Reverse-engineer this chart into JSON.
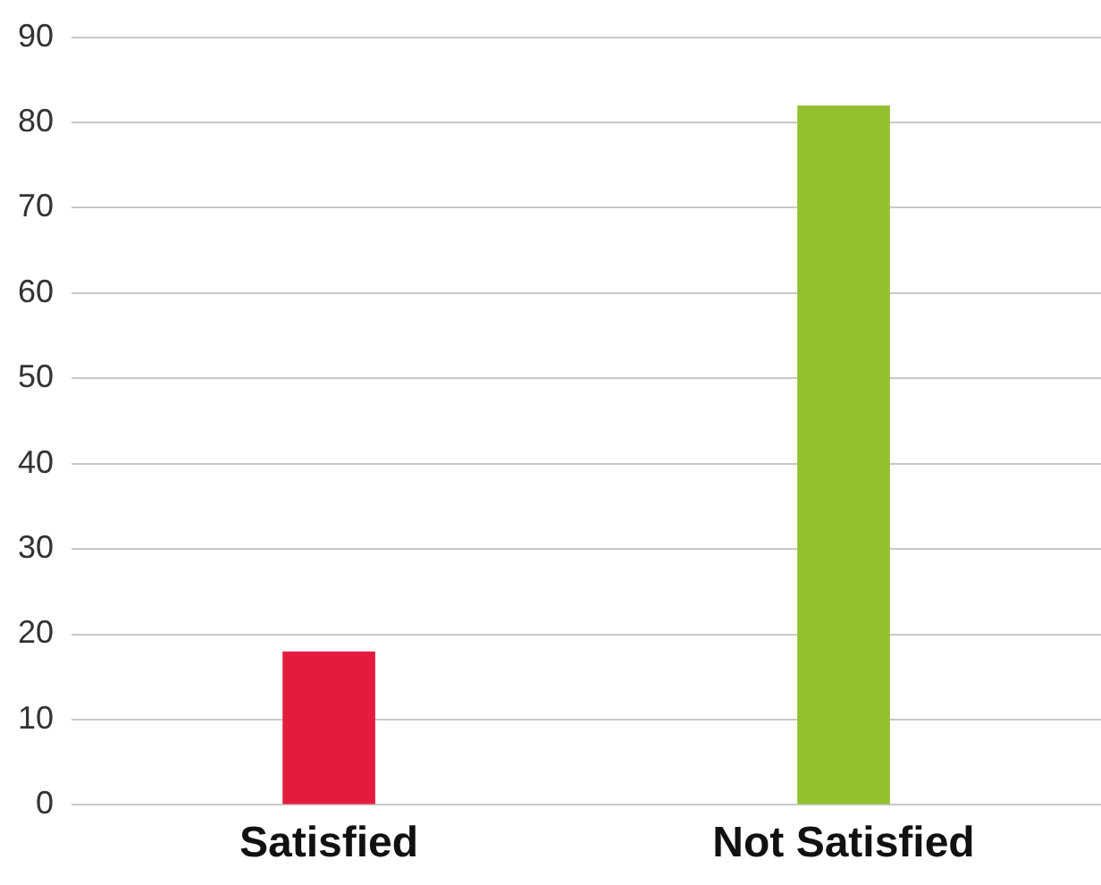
{
  "chart_data": {
    "type": "bar",
    "categories": [
      "Satisfied",
      "Not Satisfied"
    ],
    "values": [
      18,
      82
    ],
    "colors": [
      "#e31c3d",
      "#93c02e"
    ],
    "ylim": [
      0,
      90
    ],
    "yticks": [
      0,
      10,
      20,
      30,
      40,
      50,
      60,
      70,
      80,
      90
    ],
    "grid": "y",
    "legend": false
  }
}
